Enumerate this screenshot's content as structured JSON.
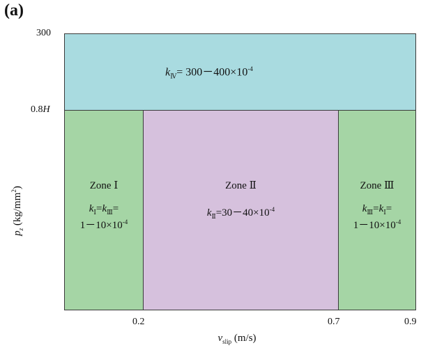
{
  "panel_label": "(a)",
  "y_axis": {
    "label_var": "p",
    "label_sub": "z",
    "label_unit_pre": " (kg/mm",
    "label_unit_sup": "2",
    "label_unit_post": ")",
    "tick_top": "300",
    "tick_mid_prefix": "0.8",
    "tick_mid_var": "H"
  },
  "x_axis": {
    "label_var": "v",
    "label_sub": "slip",
    "label_unit": " (m/s)",
    "ticks": [
      "0.2",
      "0.7",
      "0.9"
    ]
  },
  "zone4": {
    "k_var": "k",
    "k_sub": "Ⅳ",
    "formula": "= 300－400×10",
    "exp": "-4"
  },
  "zone1": {
    "title": "Zone Ⅰ",
    "line1_a": "k",
    "line1_a_sub": "Ⅰ",
    "line1_eq": "=",
    "line1_b": "k",
    "line1_b_sub": "Ⅲ",
    "line1_end": "=",
    "line2": "1－10×10",
    "exp": "-4"
  },
  "zone2": {
    "title": "Zone Ⅱ",
    "k_var": "k",
    "k_sub": "Ⅱ",
    "formula": "=30－40×10",
    "exp": "-4"
  },
  "zone3": {
    "title": "Zone Ⅲ",
    "line1_a": "k",
    "line1_a_sub": "Ⅲ",
    "line1_eq": "=",
    "line1_b": "k",
    "line1_b_sub": "Ⅰ",
    "line1_end": "=",
    "line2": "1－10×10",
    "exp": "-4"
  },
  "colors": {
    "zone4": "#a9dbe0",
    "zone1": "#a5d5a5",
    "zone2": "#d6c1dd",
    "zone3": "#a5d5a5",
    "border": "#3a3a3a"
  }
}
